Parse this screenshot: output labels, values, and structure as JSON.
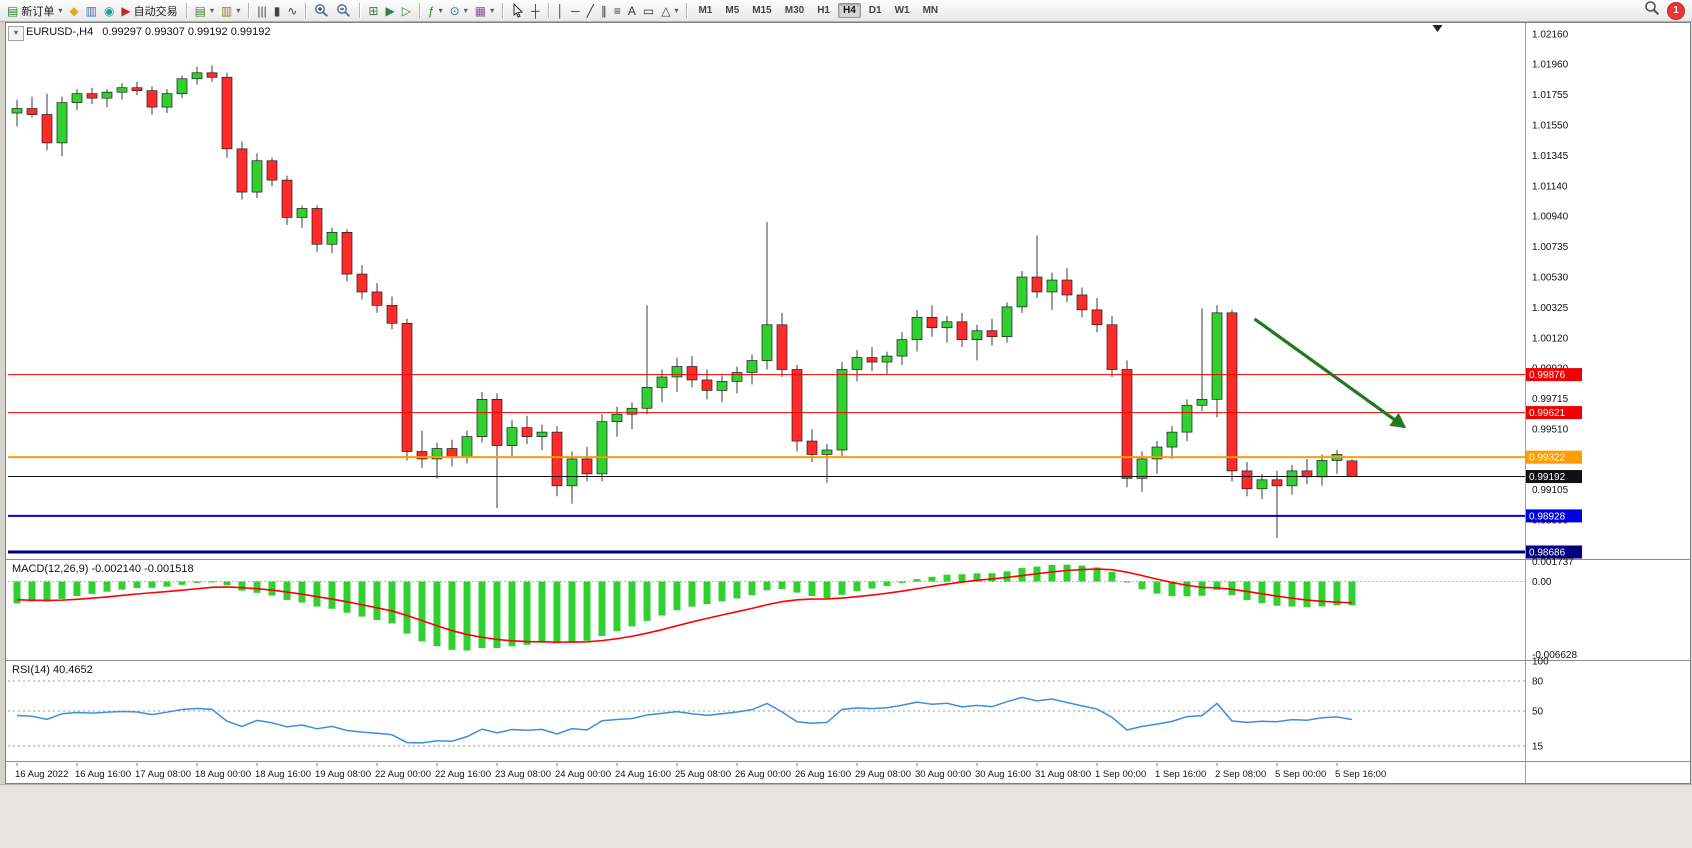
{
  "toolbar": {
    "groups": [
      {
        "items": [
          {
            "name": "new-order",
            "glyph": "▤",
            "color": "#2e7d32",
            "label": "新订单",
            "dropdown": true
          },
          {
            "name": "metaquotes-community",
            "glyph": "◆",
            "color": "#e6a817"
          },
          {
            "name": "market-watch",
            "glyph": "▥",
            "color": "#3d6fb4"
          },
          {
            "name": "data-window",
            "glyph": "◉",
            "color": "#1f9e8e"
          },
          {
            "name": "auto-trading",
            "glyph": "▶",
            "color": "#c62828",
            "label": "自动交易"
          }
        ]
      },
      {
        "items": [
          {
            "name": "new-chart",
            "glyph": "▤",
            "color": "#4a7a3a",
            "dropdown": true
          },
          {
            "name": "profiles",
            "glyph": "▥",
            "color": "#8a7a3a",
            "dropdown": true
          }
        ]
      },
      {
        "items": [
          {
            "name": "bar-chart-mode",
            "glyph": "|||",
            "color": "#444444"
          },
          {
            "name": "candlestick-mode",
            "glyph": "▮",
            "color": "#444444"
          },
          {
            "name": "line-chart-mode",
            "glyph": "∿",
            "color": "#444444"
          }
        ]
      },
      {
        "items": [
          {
            "name": "zoom-in",
            "svg": "zoom-in"
          },
          {
            "name": "zoom-out",
            "svg": "zoom-out"
          }
        ]
      },
      {
        "items": [
          {
            "name": "tile-windows",
            "glyph": "⊞",
            "color": "#3a7a4a"
          },
          {
            "name": "auto-scroll",
            "glyph": "▶",
            "color": "#3a7a4a"
          },
          {
            "name": "chart-shift",
            "glyph": "▷",
            "color": "#3a7a4a"
          }
        ]
      },
      {
        "items": [
          {
            "name": "indicators",
            "glyph": "ƒ",
            "color": "#2e7d32",
            "dropdown": true
          },
          {
            "name": "periods",
            "glyph": "⊙",
            "color": "#3d6fb4",
            "dropdown": true
          },
          {
            "name": "templates",
            "glyph": "▦",
            "color": "#7a5a8a",
            "dropdown": true
          }
        ]
      },
      {
        "items": [
          {
            "name": "cursor",
            "svg": "cursor"
          },
          {
            "name": "crosshair",
            "glyph": "┼",
            "color": "#333333"
          }
        ]
      },
      {
        "items": [
          {
            "name": "vertical-line",
            "glyph": "│",
            "color": "#333333"
          },
          {
            "name": "horizontal-line",
            "glyph": "─",
            "color": "#333333"
          },
          {
            "name": "trendline",
            "glyph": "╱",
            "color": "#333333"
          },
          {
            "name": "equidistant-channel",
            "glyph": "∥",
            "color": "#333333"
          },
          {
            "name": "fibonacci-retracement",
            "glyph": "≡",
            "color": "#333333"
          },
          {
            "name": "text-tool",
            "glyph": "A",
            "color": "#333333"
          },
          {
            "name": "text-label",
            "glyph": "▭",
            "color": "#333333"
          },
          {
            "name": "shapes",
            "glyph": "△",
            "color": "#333333",
            "dropdown": true
          }
        ]
      }
    ],
    "timeframes": [
      "M1",
      "M5",
      "M15",
      "M30",
      "H1",
      "H4",
      "D1",
      "W1",
      "MN"
    ],
    "active_timeframe": "H4",
    "notification_count": "1"
  },
  "chart": {
    "symbol_period": "EURUSD-,H4",
    "ohlc_text": "0.99297 0.99307 0.99192 0.99192"
  },
  "chart_data": {
    "type": "candlestick",
    "symbol": "EURUSD-",
    "period": "H4",
    "colors": {
      "bull": "#30D030",
      "bear": "#FF2B2B",
      "wick": "#3c3c3c",
      "macd_hist": "#30D030",
      "macd_signal": "#FF0000",
      "rsi": "#3E8EDE",
      "bid": "#111111",
      "arrow": "#1F7A1F",
      "level_red": "#F00000",
      "level_orange": "#FF9C00",
      "level_blue": "#0000E0",
      "level_navy": "#000080"
    },
    "main_range": [
      0.98639,
      1.02234
    ],
    "candles": [
      [
        1.0163,
        1.0172,
        1.0154,
        1.0166
      ],
      [
        1.0166,
        1.0174,
        1.016,
        1.0162
      ],
      [
        1.0162,
        1.0176,
        1.0138,
        1.0143
      ],
      [
        1.0143,
        1.0174,
        1.0134,
        1.017
      ],
      [
        1.017,
        1.0179,
        1.0165,
        1.0176
      ],
      [
        1.0176,
        1.018,
        1.0169,
        1.0173
      ],
      [
        1.0173,
        1.0179,
        1.0167,
        1.0177
      ],
      [
        1.0177,
        1.0183,
        1.0172,
        1.018
      ],
      [
        1.018,
        1.0184,
        1.0175,
        1.0178
      ],
      [
        1.0178,
        1.0181,
        1.0162,
        1.0167
      ],
      [
        1.0167,
        1.0179,
        1.0163,
        1.0176
      ],
      [
        1.0176,
        1.0188,
        1.0173,
        1.0186
      ],
      [
        1.0186,
        1.0194,
        1.0182,
        1.019
      ],
      [
        1.019,
        1.0195,
        1.0184,
        1.0187
      ],
      [
        1.0187,
        1.019,
        1.0133,
        1.0139
      ],
      [
        1.0139,
        1.0144,
        1.0105,
        1.011
      ],
      [
        1.011,
        1.0136,
        1.0106,
        1.0131
      ],
      [
        1.0131,
        1.0133,
        1.0114,
        1.0118
      ],
      [
        1.0118,
        1.0121,
        1.0088,
        1.0093
      ],
      [
        1.0093,
        1.0101,
        1.0086,
        1.0099
      ],
      [
        1.0099,
        1.0101,
        1.007,
        1.0075
      ],
      [
        1.0075,
        1.0086,
        1.0069,
        1.0083
      ],
      [
        1.0083,
        1.0085,
        1.005,
        1.0055
      ],
      [
        1.0055,
        1.0061,
        1.0038,
        1.0043
      ],
      [
        1.0043,
        1.0049,
        1.0029,
        1.0034
      ],
      [
        1.0034,
        1.004,
        1.0018,
        1.0022
      ],
      [
        1.0022,
        1.0025,
        0.993,
        0.9936
      ],
      [
        0.9936,
        0.995,
        0.9925,
        0.9931
      ],
      [
        0.9931,
        0.9942,
        0.9918,
        0.9938
      ],
      [
        0.9938,
        0.9944,
        0.9926,
        0.9932
      ],
      [
        0.9932,
        0.995,
        0.9928,
        0.9946
      ],
      [
        0.9946,
        0.9976,
        0.9942,
        0.9971
      ],
      [
        0.9971,
        0.9975,
        0.9898,
        0.994
      ],
      [
        0.994,
        0.9957,
        0.9933,
        0.9952
      ],
      [
        0.9952,
        0.996,
        0.9941,
        0.9946
      ],
      [
        0.9946,
        0.9954,
        0.9937,
        0.9949
      ],
      [
        0.9949,
        0.9953,
        0.9906,
        0.9913
      ],
      [
        0.9913,
        0.9936,
        0.9901,
        0.9931
      ],
      [
        0.9931,
        0.9939,
        0.9916,
        0.9921
      ],
      [
        0.9921,
        0.9961,
        0.9916,
        0.9956
      ],
      [
        0.9956,
        0.9966,
        0.9946,
        0.9961
      ],
      [
        0.9961,
        0.9969,
        0.9951,
        0.9965
      ],
      [
        0.9965,
        1.0034,
        0.9961,
        0.9979
      ],
      [
        0.9979,
        0.9991,
        0.9969,
        0.9986
      ],
      [
        0.9986,
        0.9999,
        0.9976,
        0.9993
      ],
      [
        0.9993,
        1.0,
        0.9979,
        0.9984
      ],
      [
        0.9984,
        0.9991,
        0.9971,
        0.9977
      ],
      [
        0.9977,
        0.9987,
        0.9969,
        0.9983
      ],
      [
        0.9983,
        0.9993,
        0.9975,
        0.9989
      ],
      [
        0.9989,
        1.0001,
        0.9981,
        0.9997
      ],
      [
        0.9997,
        1.009,
        0.9991,
        1.0021
      ],
      [
        1.0021,
        1.0029,
        0.9986,
        0.9991
      ],
      [
        0.9991,
        0.9994,
        0.9936,
        0.9943
      ],
      [
        0.9943,
        0.9951,
        0.9929,
        0.9934
      ],
      [
        0.9934,
        0.9941,
        0.9915,
        0.9937
      ],
      [
        0.9937,
        0.9996,
        0.9932,
        0.9991
      ],
      [
        0.9991,
        1.0004,
        0.9983,
        0.9999
      ],
      [
        0.9999,
        1.0006,
        0.999,
        0.9996
      ],
      [
        0.9996,
        1.0003,
        0.9988,
        1.0
      ],
      [
        1.0,
        1.0016,
        0.9994,
        1.0011
      ],
      [
        1.0011,
        1.0031,
        1.0003,
        1.0026
      ],
      [
        1.0026,
        1.0034,
        1.0013,
        1.0019
      ],
      [
        1.0019,
        1.0027,
        1.0009,
        1.0023
      ],
      [
        1.0023,
        1.0029,
        1.0006,
        1.0011
      ],
      [
        1.0011,
        1.0021,
        0.9997,
        1.0017
      ],
      [
        1.0017,
        1.0025,
        1.0007,
        1.0013
      ],
      [
        1.0013,
        1.0036,
        1.0009,
        1.0033
      ],
      [
        1.0033,
        1.0057,
        1.0029,
        1.0053
      ],
      [
        1.0053,
        1.0081,
        1.0039,
        1.0043
      ],
      [
        1.0043,
        1.0056,
        1.0031,
        1.0051
      ],
      [
        1.0051,
        1.0059,
        1.0036,
        1.0041
      ],
      [
        1.0041,
        1.0046,
        1.0026,
        1.0031
      ],
      [
        1.0031,
        1.0039,
        1.0016,
        1.0021
      ],
      [
        1.0021,
        1.0027,
        0.9986,
        0.9991
      ],
      [
        0.9991,
        0.9997,
        0.9912,
        0.9918
      ],
      [
        0.9918,
        0.9936,
        0.9909,
        0.9931
      ],
      [
        0.9931,
        0.9943,
        0.9921,
        0.9939
      ],
      [
        0.9939,
        0.9953,
        0.9931,
        0.9949
      ],
      [
        0.9949,
        0.9971,
        0.9943,
        0.9967
      ],
      [
        0.9967,
        1.0032,
        0.9963,
        0.9971
      ],
      [
        0.9971,
        1.0034,
        0.9959,
        1.0029
      ],
      [
        1.0029,
        1.0031,
        0.9916,
        0.9923
      ],
      [
        0.9923,
        0.9929,
        0.9906,
        0.9911
      ],
      [
        0.9911,
        0.9921,
        0.9904,
        0.9917
      ],
      [
        0.9917,
        0.9923,
        0.9878,
        0.9913
      ],
      [
        0.9913,
        0.9927,
        0.9907,
        0.9923
      ],
      [
        0.9923,
        0.9931,
        0.9914,
        0.9919
      ],
      [
        0.9919,
        0.9934,
        0.9913,
        0.993
      ],
      [
        0.993,
        0.9937,
        0.9921,
        0.9934
      ],
      [
        0.99297,
        0.99307,
        0.99192,
        0.99192
      ]
    ],
    "label_step": 4,
    "time_labels": [
      "16 Aug 2022",
      "16 Aug 16:00",
      "17 Aug 08:00",
      "18 Aug 00:00",
      "18 Aug 16:00",
      "19 Aug 08:00",
      "22 Aug 00:00",
      "22 Aug 16:00",
      "23 Aug 08:00",
      "24 Aug 00:00",
      "24 Aug 16:00",
      "25 Aug 08:00",
      "26 Aug 00:00",
      "26 Aug 16:00",
      "29 Aug 08:00",
      "30 Aug 00:00",
      "30 Aug 16:00",
      "31 Aug 08:00",
      "1 Sep 00:00",
      "1 Sep 16:00",
      "2 Sep 08:00",
      "5 Sep 00:00",
      "5 Sep 16:00"
    ],
    "price_axis_labels": [
      "1.02160",
      "1.01960",
      "1.01755",
      "1.01550",
      "1.01345",
      "1.01140",
      "1.00940",
      "1.00735",
      "1.00530",
      "1.00325",
      "1.00120",
      "0.99920",
      "0.99715",
      "0.99510",
      "0.99105",
      "0.98900"
    ],
    "levels": [
      {
        "label": "0.99876",
        "price": 0.99876,
        "color": "#F00000",
        "width": 1
      },
      {
        "label": "0.99621",
        "price": 0.99621,
        "color": "#F00000",
        "width": 1
      },
      {
        "label": "0.99322",
        "price": 0.99322,
        "color": "#FF9C00",
        "width": 2
      },
      {
        "label": "0.98928",
        "price": 0.98928,
        "color": "#0000E0",
        "width": 2
      },
      {
        "label": "0.98686",
        "price": 0.98686,
        "color": "#000080",
        "width": 3
      }
    ],
    "bid": {
      "label": "0.99192",
      "price": 0.99192
    },
    "arrow": {
      "from_candle": 82.5,
      "from_price": 1.00249,
      "to_candle": 92.5,
      "to_price": 0.99525
    },
    "shift_marker_candle": 94.7,
    "macd": {
      "label": "MACD(12,26,9) -0.002140 -0.001518",
      "params": [
        12,
        26,
        9
      ],
      "value": -0.00214,
      "signal_value": -0.001518,
      "range": [
        -0.00675,
        0.00185
      ],
      "axis_labels": [
        {
          "v": 0.001737,
          "t": "0.001737"
        },
        {
          "v": 0,
          "t": "0.00"
        },
        {
          "v": -0.006628,
          "t": "-0.006628"
        }
      ]
    },
    "rsi": {
      "label": "RSI(14) 40.4652",
      "period": 14,
      "value": 40.4652,
      "range": [
        0,
        100
      ],
      "axis_labels": [
        {
          "v": 100,
          "t": "100"
        },
        {
          "v": 80,
          "t": "80"
        },
        {
          "v": 50,
          "t": "50"
        },
        {
          "v": 15,
          "t": "15"
        }
      ],
      "level_lines": [
        80,
        50,
        15
      ]
    }
  }
}
